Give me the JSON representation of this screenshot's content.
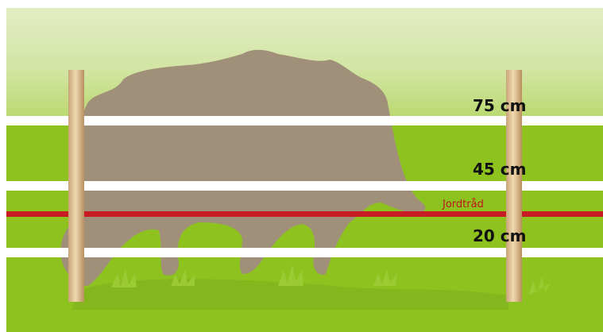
{
  "wires": [
    {
      "label": "75 cm"
    },
    {
      "label": "45 cm"
    },
    {
      "label": "Jordtråd"
    },
    {
      "label": "20 cm"
    }
  ]
}
